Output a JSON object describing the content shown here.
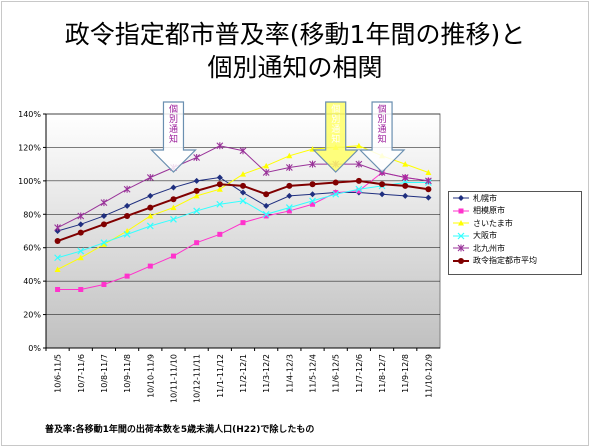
{
  "title": {
    "line1": "政令指定都市普及率(移動1年間の推移)と",
    "line2": "個別通知の相関"
  },
  "footnote": "普及率:各移動1年間の出荷本数を5歳未満人口(H22)で除したもの",
  "colors": {
    "plot_bg_top": "#ffffff",
    "plot_bg_bottom": "#c0c0c0",
    "arrow_fill": "#ffff66"
  },
  "annotations": [
    {
      "label": "個別通知",
      "text_color": "#9b1c9b",
      "arrow_fill": "#ffffff",
      "category_index": 5
    },
    {
      "label": "個別通知",
      "text_color": "#ffffff",
      "arrow_fill": "#ffff66",
      "category_index": 12
    },
    {
      "label": "個別通知",
      "text_color": "#9b1c9b",
      "arrow_fill": "#ffffff",
      "category_index": 14
    }
  ],
  "chart_data": {
    "type": "line",
    "title": "政令指定都市普及率(移動1年間の推移)と個別通知の相関",
    "ylim": [
      0,
      140
    ],
    "y_ticks": [
      "0%",
      "20%",
      "40%",
      "60%",
      "80%",
      "100%",
      "120%",
      "140%"
    ],
    "grid": true,
    "legend_position": "right",
    "categories": [
      "10/6-11/5",
      "10/7-11/6",
      "10/8-11/7",
      "10/9-11/8",
      "10/10-11/9",
      "10/11-11/10",
      "10/12-11/11",
      "11/1-11/12",
      "11/2-12/1",
      "11/3-12/2",
      "11/4-12/3",
      "11/5-12/4",
      "11/6-12/5",
      "11/7-12/6",
      "11/8-12/7",
      "11/9-12/8",
      "11/10-12/9"
    ],
    "series": [
      {
        "name": "札幌市",
        "color": "#1f2f7f",
        "marker": "diamond",
        "width": 1,
        "values": [
          70,
          74,
          79,
          85,
          91,
          96,
          100,
          102,
          93,
          85,
          91,
          92,
          93,
          93,
          92,
          91,
          90
        ]
      },
      {
        "name": "相模原市",
        "color": "#ff33cc",
        "marker": "square",
        "width": 1,
        "values": [
          35,
          35,
          38,
          43,
          49,
          55,
          63,
          68,
          75,
          79,
          82,
          86,
          93,
          94,
          105,
          102,
          100
        ]
      },
      {
        "name": "さいたま市",
        "color": "#ffff00",
        "marker": "triangle",
        "width": 1,
        "values": [
          47,
          54,
          62,
          70,
          79,
          84,
          91,
          95,
          104,
          109,
          115,
          119,
          120,
          121,
          115,
          110,
          105
        ]
      },
      {
        "name": "大阪市",
        "color": "#33ffff",
        "marker": "x",
        "width": 1,
        "values": [
          54,
          58,
          63,
          68,
          73,
          77,
          82,
          86,
          88,
          80,
          84,
          88,
          92,
          95,
          97,
          99,
          99
        ]
      },
      {
        "name": "北九州市",
        "color": "#993399",
        "marker": "star",
        "width": 1,
        "values": [
          72,
          79,
          87,
          95,
          102,
          108,
          114,
          121,
          118,
          105,
          108,
          110,
          110,
          110,
          105,
          102,
          100
        ]
      },
      {
        "name": "政令指定都市平均",
        "color": "#800000",
        "marker": "circle",
        "width": 2,
        "values": [
          64,
          69,
          74,
          79,
          84,
          89,
          94,
          98,
          97,
          92,
          97,
          98,
          99,
          100,
          98,
          97,
          95
        ]
      }
    ]
  }
}
